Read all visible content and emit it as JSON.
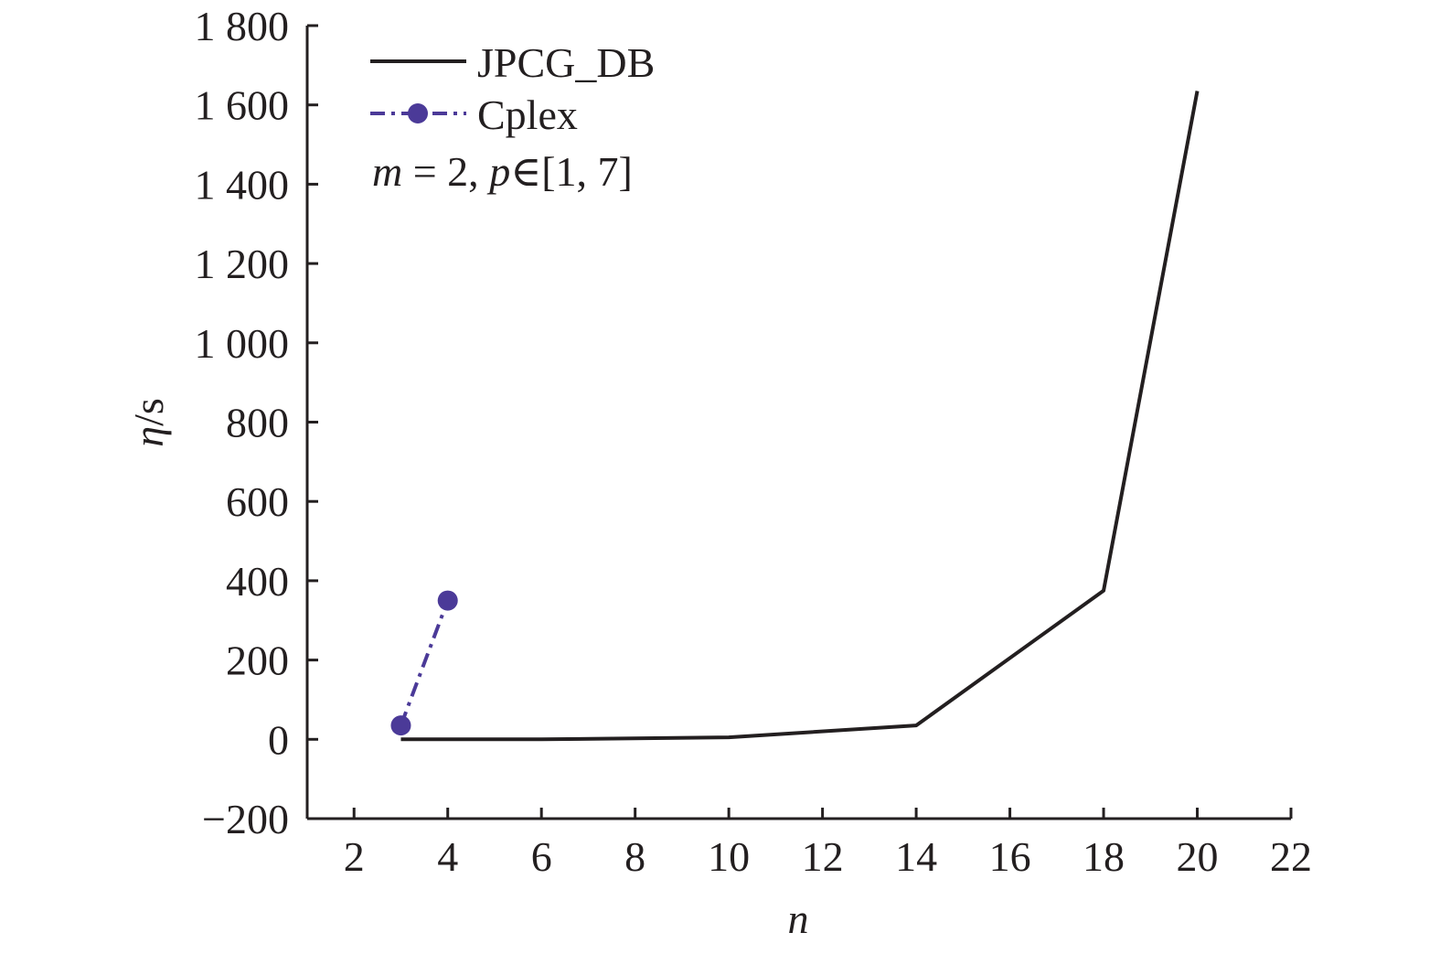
{
  "chart_data": {
    "type": "line",
    "xlabel": "n",
    "ylabel_italic": "η",
    "ylabel_rest": "/s",
    "xlim": [
      1,
      22
    ],
    "ylim": [
      -200,
      1800
    ],
    "x_ticks": [
      "2",
      "4",
      "6",
      "8",
      "10",
      "12",
      "14",
      "16",
      "18",
      "20",
      "22"
    ],
    "y_ticks": [
      "−200",
      "0",
      "200",
      "400",
      "600",
      "800",
      "1 000",
      "1 200",
      "1 400",
      "1 600",
      "1 800"
    ],
    "x_tick_values": [
      2,
      4,
      6,
      8,
      10,
      12,
      14,
      16,
      18,
      20,
      22
    ],
    "y_tick_values": [
      -200,
      0,
      200,
      400,
      600,
      800,
      1000,
      1200,
      1400,
      1600,
      1800
    ],
    "legend_position": "top-left",
    "series": [
      {
        "name": "JPCG_DB",
        "color": "#231f20",
        "style": "solid",
        "x": [
          3,
          6,
          10,
          14,
          18,
          20
        ],
        "y": [
          0,
          0,
          5,
          35,
          375,
          1635
        ]
      },
      {
        "name": "Cplex",
        "color": "#4b3a98",
        "style": "dash-dot",
        "marker": "circle",
        "x": [
          3,
          4
        ],
        "y": [
          35,
          350
        ]
      }
    ],
    "annotation": {
      "m_var": "m",
      "m_text": " = 2, ",
      "p_var": "p",
      "p_text": "∈[1, 7]"
    }
  }
}
